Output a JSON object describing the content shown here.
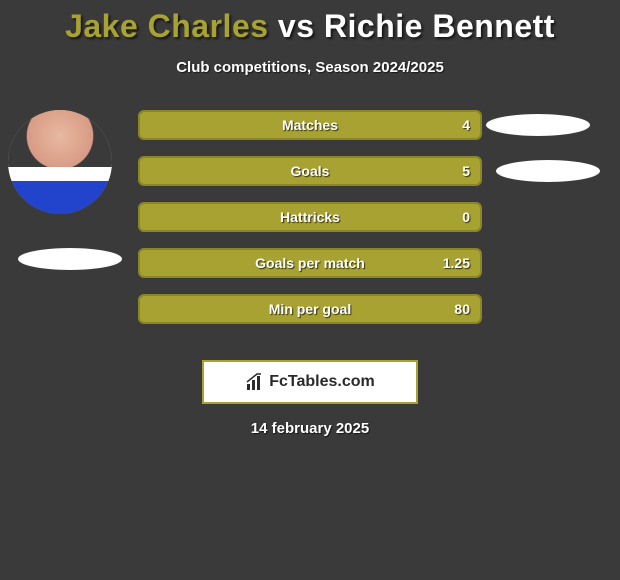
{
  "title": {
    "player1": "Jake Charles",
    "vs": "vs",
    "player2": "Richie Bennett",
    "player1_color": "#a8a232",
    "vs_color": "#ffffff",
    "player2_color": "#ffffff"
  },
  "subtitle": "Club competitions, Season 2024/2025",
  "colors": {
    "background": "#3a3a3a",
    "bar_fill": "#a8a232",
    "bar_border": "#8a8628",
    "pill": "#ffffff"
  },
  "stats": [
    {
      "label": "Matches",
      "value": "4",
      "fill_pct": 100
    },
    {
      "label": "Goals",
      "value": "5",
      "fill_pct": 100
    },
    {
      "label": "Hattricks",
      "value": "0",
      "fill_pct": 100
    },
    {
      "label": "Goals per match",
      "value": "1.25",
      "fill_pct": 100
    },
    {
      "label": "Min per goal",
      "value": "80",
      "fill_pct": 100
    }
  ],
  "logo": {
    "icon": "bar-chart-icon",
    "text": "FcTables.com"
  },
  "date": "14 february 2025"
}
